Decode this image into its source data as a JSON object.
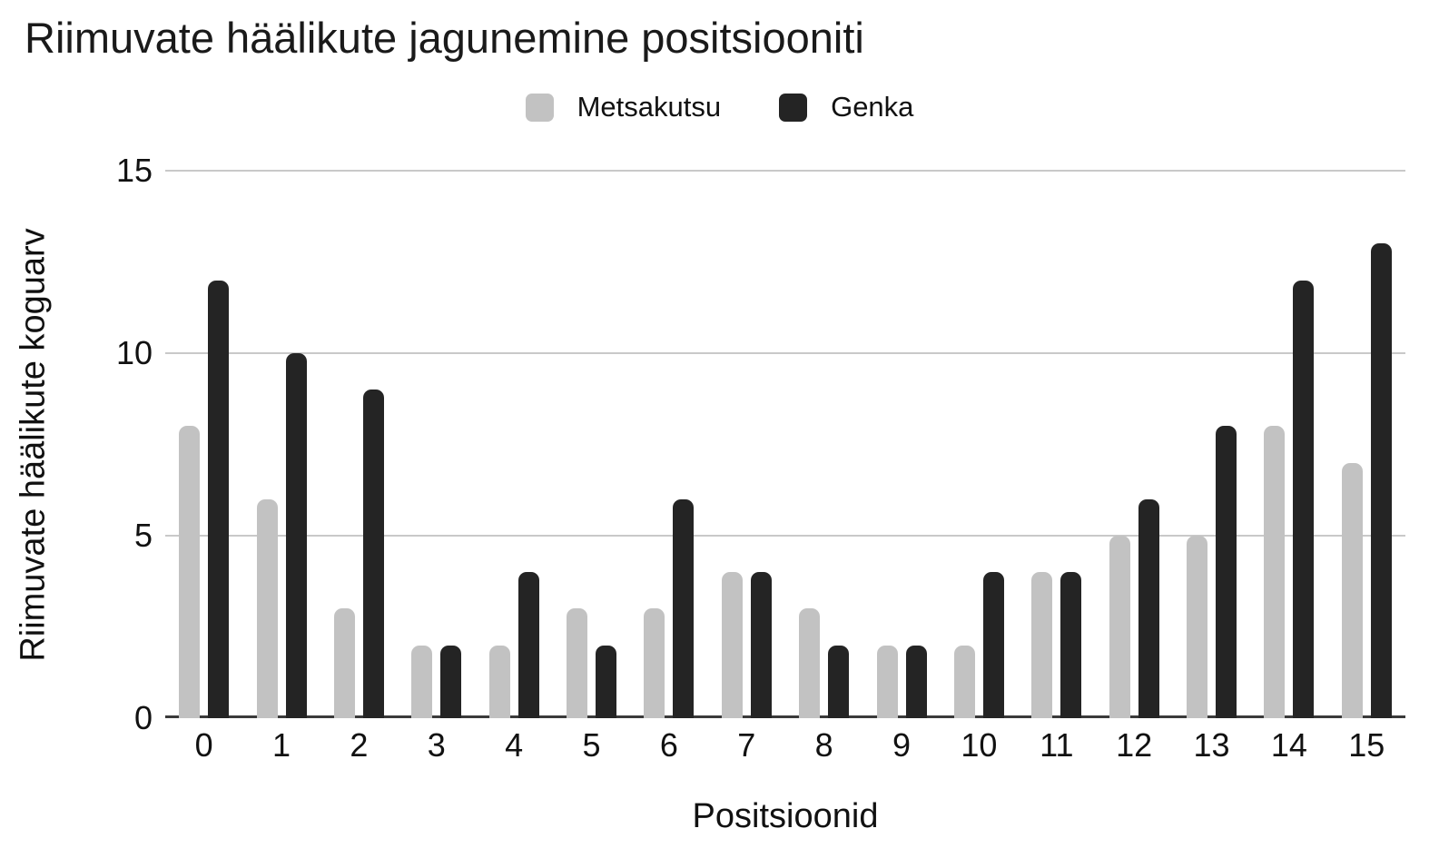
{
  "title": "Riimuvate häälikute jagunemine positsiooniti",
  "legend": {
    "items": [
      {
        "label": "Metsakutsu",
        "color": "#c2c2c2"
      },
      {
        "label": "Genka",
        "color": "#242424"
      }
    ]
  },
  "axes": {
    "x_title": "Positsioonid",
    "y_title": "Riimuvate häälikute koguarv"
  },
  "colors": {
    "gridline": "#c9c9c9",
    "baseline": "#3a3a3a",
    "text": "#111111"
  },
  "chart_data": {
    "type": "bar",
    "title": "Riimuvate häälikute jagunemine positsiooniti",
    "xlabel": "Positsioonid",
    "ylabel": "Riimuvate häälikute koguarv",
    "categories": [
      "0",
      "1",
      "2",
      "3",
      "4",
      "5",
      "6",
      "7",
      "8",
      "9",
      "10",
      "11",
      "12",
      "13",
      "14",
      "15"
    ],
    "series": [
      {
        "name": "Metsakutsu",
        "color": "#c2c2c2",
        "values": [
          8,
          6,
          3,
          2,
          2,
          3,
          3,
          4,
          3,
          2,
          2,
          4,
          5,
          5,
          8,
          7
        ]
      },
      {
        "name": "Genka",
        "color": "#242424",
        "values": [
          12,
          10,
          9,
          2,
          4,
          2,
          6,
          4,
          2,
          2,
          4,
          4,
          6,
          8,
          12,
          13
        ]
      }
    ],
    "yticks": [
      0,
      5,
      10,
      15
    ],
    "ylim": [
      0,
      15
    ],
    "grid": true,
    "legend_position": "top"
  }
}
